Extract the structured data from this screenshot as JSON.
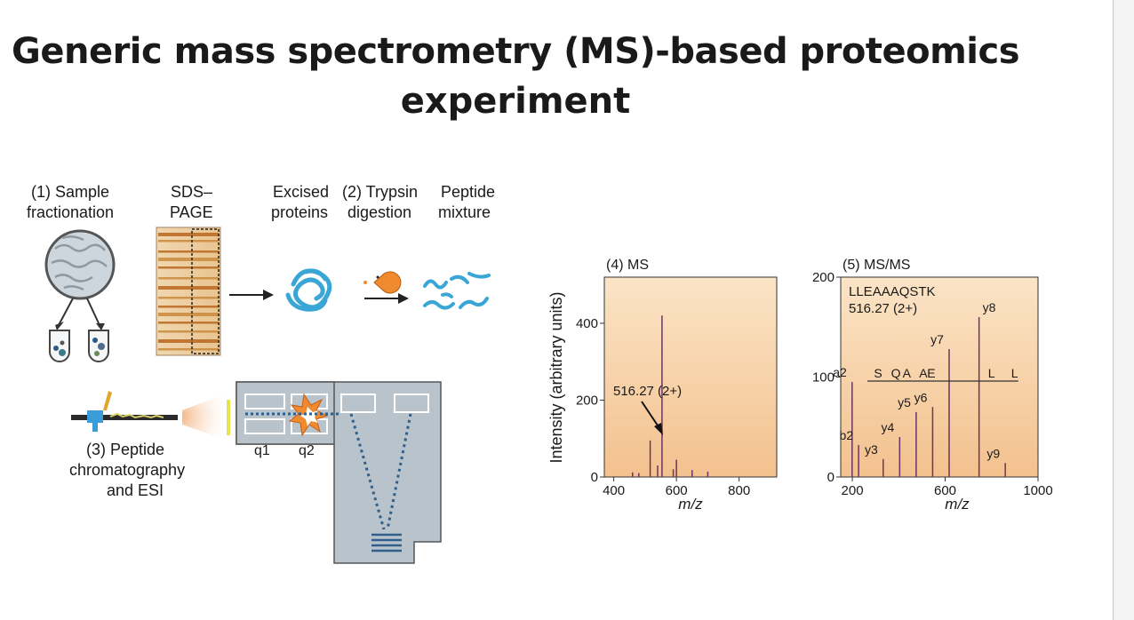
{
  "title": {
    "line1": "Generic mass spectrometry (MS)-based proteomics",
    "line2": "experiment"
  },
  "workflow": {
    "step1_line1": "(1) Sample",
    "step1_line2": "fractionation",
    "sds_line1": "SDS–",
    "sds_line2": "PAGE",
    "excised_line1": "Excised",
    "excised_line2": "proteins",
    "step2_line1": "(2) Trypsin",
    "step2_line2": "digestion",
    "peptide_line1": "Peptide",
    "peptide_line2": "mixture",
    "step3_line1": "(3) Peptide",
    "step3_line2": "chromatography",
    "step3_line3": "and ESI",
    "q1": "q1",
    "q2": "q2"
  },
  "colors": {
    "protein_blue": "#3aa6d6",
    "spectrum_line": "#6a3560",
    "spectrum_bg_top": "#f2c99a",
    "instrument_grey": "#b9c3cc"
  },
  "chart_data": [
    {
      "type": "bar",
      "title": "(4) MS",
      "xlabel": "m/z",
      "ylabel": "Intensity (arbitrary units)",
      "xlim": [
        370,
        920
      ],
      "ylim": [
        0,
        520
      ],
      "xticks": [
        "400",
        "600",
        "800"
      ],
      "yticks": [
        "0",
        "200",
        "400"
      ],
      "annotation": "516.27 (2+)",
      "peaks": [
        [
          516.27,
          95
        ],
        [
          540,
          30
        ],
        [
          554,
          420
        ],
        [
          600,
          45
        ],
        [
          650,
          18
        ],
        [
          700,
          14
        ],
        [
          460,
          12
        ],
        [
          480,
          10
        ],
        [
          590,
          20
        ]
      ]
    },
    {
      "type": "bar",
      "title": "(5) MS/MS",
      "xlabel": "m/z",
      "ylabel": "",
      "xlim": [
        150,
        1000
      ],
      "ylim": [
        0,
        200
      ],
      "xticks": [
        "200",
        "600",
        "1000"
      ],
      "yticks": [
        "0",
        "100",
        "200"
      ],
      "annotation_line1": "LLEAAAQSTK",
      "annotation_line2": "516.27 (2+)",
      "sequence": [
        "S",
        "Q",
        "A",
        "A",
        "E",
        "L",
        "L"
      ],
      "peaks": [
        {
          "label": "a2",
          "x": 199,
          "y": 95
        },
        {
          "label": "b2",
          "x": 227,
          "y": 32
        },
        {
          "label": "y3",
          "x": 333,
          "y": 18
        },
        {
          "label": "y4",
          "x": 404,
          "y": 40
        },
        {
          "label": "y5",
          "x": 475,
          "y": 65
        },
        {
          "label": "y6",
          "x": 546,
          "y": 70
        },
        {
          "label": "y7",
          "x": 617,
          "y": 128
        },
        {
          "label": "y8",
          "x": 746,
          "y": 160
        },
        {
          "label": "y9",
          "x": 859,
          "y": 14
        }
      ]
    }
  ]
}
